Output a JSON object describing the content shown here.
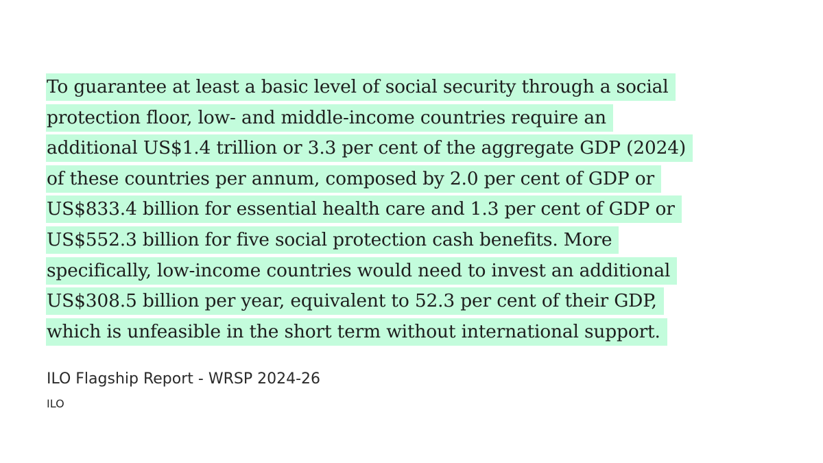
{
  "quote": {
    "lines": [
      "To guarantee at least a basic level of social security through a social",
      "protection floor, low- and middle-income countries require an",
      "additional US$1.4 trillion or 3.3 per cent of the aggregate GDP (2024)",
      "of these countries per annum, composed by 2.0 per cent of GDP or",
      "US$833.4 billion for essential health care and 1.3 per cent of GDP or",
      "US$552.3 billion for five social protection cash benefits. More",
      "specifically, low-income countries would need to invest an additional",
      "US$308.5 billion per year, equivalent to 52.3 per cent of their GDP,",
      "which is unfeasible in the short term without international support."
    ],
    "highlight_color": "#c3fcdc"
  },
  "source": "ILO Flagship Report - WRSP 2024-26",
  "author": "ILO"
}
